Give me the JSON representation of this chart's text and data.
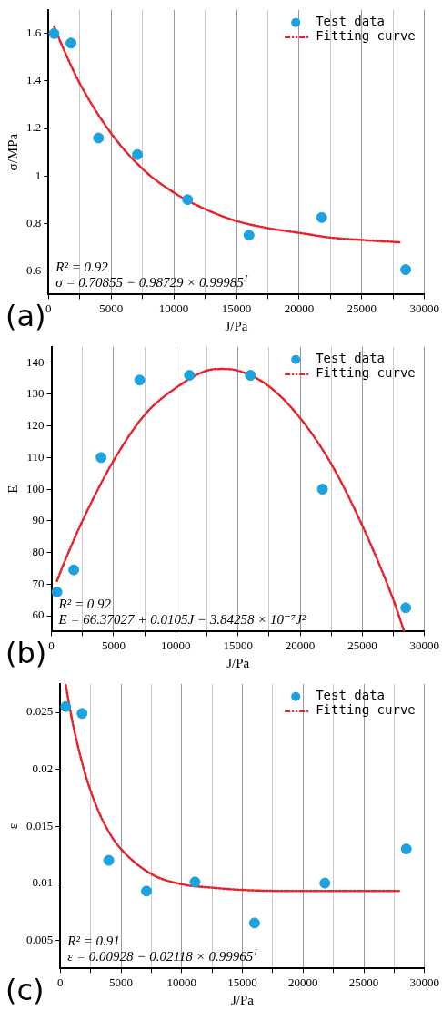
{
  "chart_data": [
    {
      "type": "scatter",
      "title": "(a)",
      "xlabel": "J/Pa",
      "ylabel": "σ/MPa",
      "xlim": [
        0,
        30000
      ],
      "xticks": [
        0,
        {
          "value": 2500,
          "label": null
        },
        5000,
        {
          "value": 7500,
          "label": null
        },
        10000,
        {
          "value": 12500,
          "label": null
        },
        15000,
        {
          "value": 17500,
          "label": null
        },
        20000,
        {
          "value": 22500,
          "label": null
        },
        25000,
        {
          "value": 27500,
          "label": null
        },
        30000
      ],
      "ylim": [
        0.5,
        1.7
      ],
      "yticks": [
        0.6,
        0.8,
        1.0,
        1.2,
        1.4,
        1.6
      ],
      "grid": "x",
      "legend": "top right",
      "annotations": [
        "R² = 0.92",
        "σ = 0.70855 − 0.98729 × 0.99985$^{J}$"
      ],
      "series": [
        {
          "name": "Test data",
          "type": "scatter",
          "marker": "circle",
          "color": "#1ba3e0",
          "x": [
            450,
            1800,
            4000,
            7100,
            11100,
            16000,
            21800,
            28500
          ],
          "values": [
            1.6,
            1.56,
            1.16,
            1.09,
            0.9,
            0.75,
            0.825,
            0.605
          ]
        },
        {
          "name": "Fitting curve",
          "type": "line",
          "line_style": "dashed",
          "marker": "none",
          "color": "#e8222a",
          "x": [
            450,
            1000,
            2500,
            5000,
            7500,
            10000,
            12500,
            15000,
            17500,
            20000,
            22500,
            25000,
            28000
          ],
          "values": [
            1.63,
            1.56,
            1.39,
            1.18,
            1.03,
            0.93,
            0.86,
            0.81,
            0.78,
            0.76,
            0.74,
            0.73,
            0.72
          ]
        }
      ]
    },
    {
      "type": "scatter",
      "title": "(b)",
      "xlabel": "J/Pa",
      "ylabel": "E",
      "xlim": [
        0,
        30000
      ],
      "xticks": [
        0,
        {
          "value": 2500,
          "label": null
        },
        5000,
        {
          "value": 7500,
          "label": null
        },
        10000,
        {
          "value": 12500,
          "label": null
        },
        15000,
        {
          "value": 17500,
          "label": null
        },
        20000,
        {
          "value": 22500,
          "label": null
        },
        25000,
        {
          "value": 27500,
          "label": null
        },
        30000
      ],
      "ylim": [
        55,
        145
      ],
      "yticks": [
        60,
        70,
        80,
        90,
        100,
        110,
        120,
        130,
        140
      ],
      "grid": "x",
      "legend": "top right",
      "annotations": [
        "R² = 0.92",
        "E = 66.37027 + 0.0105J − 3.84258 × 10⁻⁷J²"
      ],
      "series": [
        {
          "name": "Test data",
          "type": "scatter",
          "marker": "circle",
          "color": "#1ba3e0",
          "x": [
            450,
            1800,
            4000,
            7100,
            11100,
            16000,
            21800,
            28500
          ],
          "values": [
            67.5,
            74.5,
            110,
            134.5,
            136,
            136,
            100,
            62.5
          ]
        },
        {
          "name": "Fitting curve",
          "type": "line",
          "line_style": "dashed",
          "marker": "none",
          "color": "#e8222a",
          "x": [
            450,
            1000,
            2500,
            5000,
            7500,
            10000,
            12500,
            13700,
            15000,
            17500,
            20000,
            22500,
            25000,
            27500,
            28350
          ],
          "values": [
            71,
            76.5,
            90,
            109,
            123.5,
            132,
            137.5,
            138,
            137.5,
            132.5,
            122.5,
            108,
            88.5,
            65,
            55.2
          ]
        }
      ]
    },
    {
      "type": "scatter",
      "title": "(c)",
      "xlabel": "J/Pa",
      "ylabel": "ε",
      "xlim": [
        0,
        30000
      ],
      "xticks": [
        0,
        {
          "value": 2500,
          "label": null
        },
        5000,
        {
          "value": 7500,
          "label": null
        },
        10000,
        {
          "value": 12500,
          "label": null
        },
        15000,
        {
          "value": 17500,
          "label": null
        },
        20000,
        {
          "value": 22500,
          "label": null
        },
        25000,
        {
          "value": 27500,
          "label": null
        },
        30000
      ],
      "ylim": [
        0.0025,
        0.0275
      ],
      "yticks": [
        0.005,
        0.01,
        0.015,
        0.02,
        0.025
      ],
      "grid": "x",
      "legend": "top right",
      "annotations": [
        "R² = 0.91",
        "ε = 0.00928 − 0.02118 × 0.99965$^{J}$"
      ],
      "series": [
        {
          "name": "Test data",
          "type": "scatter",
          "marker": "circle",
          "color": "#1ba3e0",
          "x": [
            450,
            1800,
            4000,
            7100,
            11100,
            16000,
            21800,
            28500
          ],
          "values": [
            0.0255,
            0.0249,
            0.012,
            0.0093,
            0.0101,
            0.0065,
            0.01,
            0.013
          ]
        },
        {
          "name": "Fitting curve",
          "type": "line",
          "line_style": "dashed",
          "marker": "none",
          "color": "#e8222a",
          "x": [
            450,
            1000,
            2000,
            3000,
            4000,
            5000,
            7500,
            10000,
            12500,
            15000,
            20000,
            28000
          ],
          "values": [
            0.0274,
            0.0242,
            0.0198,
            0.0167,
            0.0145,
            0.013,
            0.0108,
            0.0099,
            0.0096,
            0.0094,
            0.0093,
            0.0093
          ]
        }
      ]
    }
  ]
}
